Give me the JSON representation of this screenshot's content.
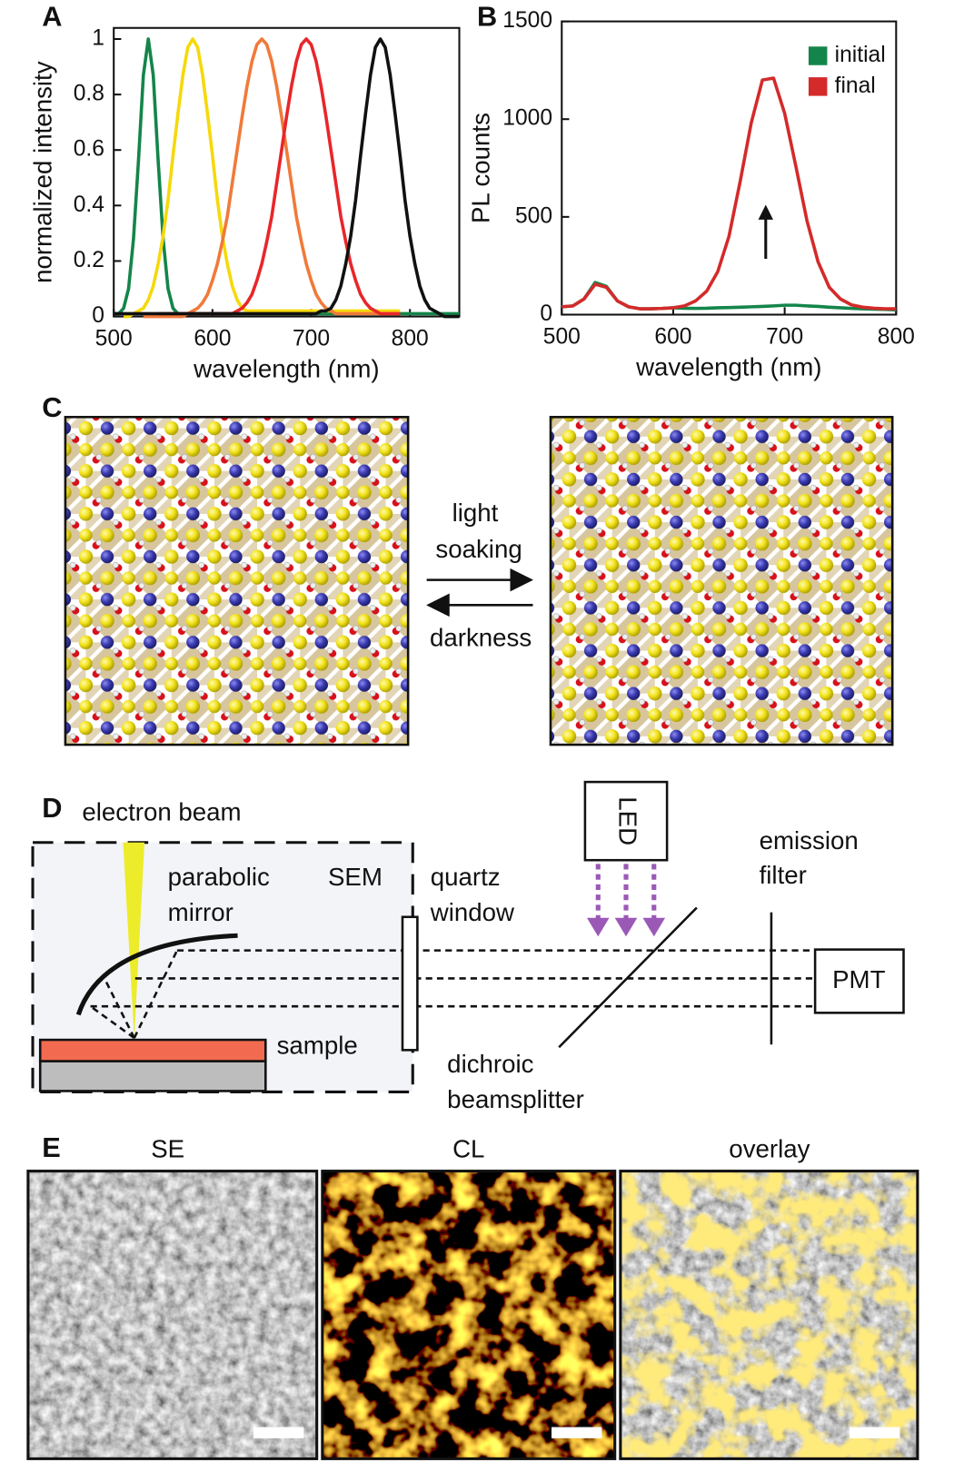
{
  "chart_data": [
    {
      "type": "line",
      "label": "A",
      "xlabel": "wavelength (nm)",
      "ylabel": "normalized intensity",
      "x": [
        500,
        505,
        510,
        515,
        520,
        525,
        530,
        535,
        540,
        545,
        550,
        555,
        560,
        565,
        570,
        575,
        580,
        585,
        590,
        595,
        600,
        605,
        610,
        615,
        620,
        625,
        630,
        635,
        640,
        645,
        650,
        655,
        660,
        665,
        670,
        675,
        680,
        685,
        690,
        695,
        700,
        705,
        710,
        715,
        720,
        725,
        730,
        735,
        740,
        745,
        750,
        755,
        760,
        765,
        770,
        775,
        780,
        785,
        790,
        795,
        800,
        805,
        810,
        815,
        820,
        825,
        830,
        835,
        840,
        845,
        850
      ],
      "xlim": [
        500,
        850
      ],
      "xticks": [
        500,
        600,
        700,
        800
      ],
      "ylim": [
        0,
        1.04
      ],
      "yticks": [
        0,
        0.2,
        0.4,
        0.6,
        0.8,
        1
      ],
      "series": [
        {
          "color": "#14854a",
          "values": [
            0.01,
            0.01,
            0.03,
            0.1,
            0.28,
            0.56,
            0.87,
            1,
            0.87,
            0.56,
            0.28,
            0.1,
            0.03,
            0.01,
            0.01,
            0.01,
            0.01,
            0.01,
            0.01,
            0.01,
            0.01,
            0.01,
            0.01,
            0.01,
            0.01,
            0.01,
            0.01,
            0.01,
            0.01,
            0.01,
            0.01,
            0.01,
            0.01,
            0.01,
            0.01,
            0.01,
            0.01,
            0.01,
            0.01,
            0.01,
            0.01,
            0.01,
            0.01,
            0.01,
            0.01,
            0.01,
            0.01,
            0.01,
            0.01,
            0.01,
            0.01,
            0.01,
            0.01,
            0.01,
            0.01,
            0.01,
            0.01,
            0.01,
            0.01,
            0.01,
            0.01,
            0.01,
            0.01,
            0.01,
            0.01,
            0.01,
            0.01,
            0.01,
            0.01,
            0.01,
            0.01
          ]
        },
        {
          "color": "#f5d90a",
          "values": [
            null,
            null,
            0,
            0,
            0.01,
            0.02,
            0.03,
            0.06,
            0.11,
            0.19,
            0.29,
            0.42,
            0.58,
            0.73,
            0.87,
            0.97,
            1,
            0.97,
            0.87,
            0.73,
            0.58,
            0.42,
            0.29,
            0.19,
            0.11,
            0.06,
            0.03,
            0.02,
            0.02,
            0.02,
            0.02,
            0.02,
            0.02,
            0.02,
            0.02,
            0.02,
            0.02,
            0.02,
            0.02,
            0.02,
            0.02,
            0.02,
            0.02,
            0.02,
            0.02,
            0.02,
            0.02,
            0.02,
            0.02,
            0.02,
            0.02,
            0.02,
            0.02,
            0.02,
            0.02,
            0.02,
            0.02,
            0.02,
            0.02,
            null,
            null,
            null,
            null,
            null,
            null,
            null,
            null,
            null,
            null,
            null,
            null
          ]
        },
        {
          "color": "#f07a3a",
          "values": [
            null,
            null,
            null,
            null,
            null,
            null,
            0,
            0,
            0,
            0,
            0,
            0,
            0,
            0,
            0,
            0.01,
            0.02,
            0.03,
            0.05,
            0.08,
            0.13,
            0.19,
            0.27,
            0.36,
            0.48,
            0.6,
            0.72,
            0.83,
            0.92,
            0.98,
            1,
            0.98,
            0.92,
            0.83,
            0.72,
            0.6,
            0.48,
            0.36,
            0.27,
            0.19,
            0.13,
            0.08,
            0.05,
            0.03,
            0.02,
            0.01,
            0.01,
            0.01,
            0.01,
            0.01,
            0.01,
            0.01,
            0.01,
            0.01,
            0.01,
            0.01,
            0.01,
            0.01,
            0.01,
            null,
            null,
            null,
            null,
            null,
            null,
            null,
            null,
            null,
            null,
            null,
            null
          ]
        },
        {
          "color": "#e8262a",
          "values": [
            null,
            null,
            null,
            null,
            null,
            null,
            null,
            null,
            null,
            0.01,
            0.01,
            0.01,
            0.01,
            0.01,
            0.01,
            0.01,
            0.01,
            0.01,
            0.01,
            0.01,
            0.01,
            0.01,
            0.01,
            0.01,
            0.01,
            0.02,
            0.03,
            0.05,
            0.08,
            0.13,
            0.19,
            0.27,
            0.36,
            0.48,
            0.6,
            0.72,
            0.83,
            0.92,
            0.98,
            1,
            0.98,
            0.92,
            0.83,
            0.72,
            0.6,
            0.48,
            0.36,
            0.27,
            0.19,
            0.13,
            0.08,
            0.05,
            0.03,
            0.02,
            0.01,
            0.01,
            0.01,
            0.01,
            0.01,
            null,
            null,
            null,
            null,
            null,
            null,
            null,
            null,
            null,
            null,
            null,
            null
          ]
        },
        {
          "color": "#111111",
          "values": [
            0.01,
            0.01,
            0.01,
            0.01,
            0.01,
            0.01,
            0.01,
            0.01,
            0.01,
            0.01,
            0.01,
            0.01,
            0.01,
            0.01,
            0.01,
            0.01,
            0.01,
            0.01,
            0.01,
            0.01,
            0.01,
            0.01,
            0.01,
            0.01,
            0.01,
            0.01,
            0.01,
            0.01,
            0.01,
            0.01,
            0.01,
            0.01,
            0.01,
            0.01,
            0.01,
            0.01,
            0.01,
            0.01,
            0.01,
            0.01,
            0.01,
            0.01,
            0.02,
            0.02,
            0.03,
            0.06,
            0.11,
            0.19,
            0.29,
            0.42,
            0.58,
            0.73,
            0.87,
            0.97,
            1,
            0.97,
            0.87,
            0.73,
            0.58,
            0.42,
            0.29,
            0.19,
            0.11,
            0.06,
            0.03,
            0.02,
            0.01,
            0,
            0,
            0,
            0
          ]
        }
      ]
    },
    {
      "type": "line",
      "label": "B",
      "xlabel": "wavelength (nm)",
      "ylabel": "PL counts",
      "x": [
        500,
        510,
        520,
        530,
        540,
        550,
        560,
        570,
        580,
        590,
        600,
        610,
        620,
        630,
        640,
        650,
        660,
        670,
        680,
        690,
        700,
        710,
        720,
        730,
        740,
        750,
        760,
        770,
        780,
        790,
        800
      ],
      "xlim": [
        500,
        800
      ],
      "xticks": [
        500,
        600,
        700,
        800
      ],
      "ylim": [
        0,
        1500
      ],
      "yticks": [
        0,
        500,
        1000,
        1500
      ],
      "legend": "upper right",
      "series": [
        {
          "name": "initial",
          "color": "#14854a",
          "values": [
            40,
            45,
            80,
            165,
            145,
            70,
            40,
            30,
            30,
            32,
            35,
            33,
            32,
            33,
            35,
            36,
            38,
            40,
            42,
            45,
            48,
            48,
            45,
            42,
            38,
            35,
            32,
            30,
            28,
            27,
            25
          ]
        },
        {
          "name": "final",
          "color": "#d42a2a",
          "values": [
            40,
            45,
            80,
            155,
            140,
            70,
            40,
            30,
            30,
            32,
            35,
            45,
            70,
            120,
            220,
            400,
            680,
            980,
            1200,
            1210,
            1030,
            760,
            480,
            270,
            140,
            80,
            50,
            38,
            33,
            30,
            30
          ]
        }
      ]
    }
  ],
  "panel_c": {
    "label": "C",
    "forward": [
      "light",
      "soaking"
    ],
    "reverse": "darkness"
  },
  "panel_d": {
    "label": "D",
    "beam": "electron beam",
    "parabolic_mirror": [
      "parabolic",
      "mirror"
    ],
    "chamber": "SEM",
    "quartz_window": [
      "quartz",
      "window"
    ],
    "led": "LED",
    "emission_filter": [
      "emission",
      "filter"
    ],
    "detector": "PMT",
    "sample": "sample",
    "dichroic_beamsplitter": [
      "dichroic",
      "beamsplitter"
    ]
  },
  "panel_e": {
    "label": "E",
    "titles": [
      "SE",
      "CL",
      "overlay"
    ]
  }
}
